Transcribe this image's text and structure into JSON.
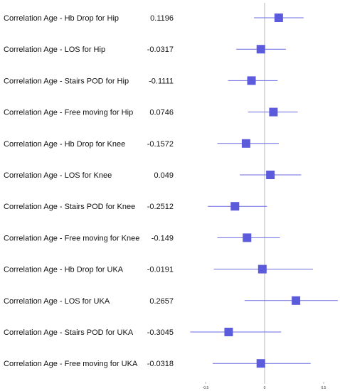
{
  "chart_data": {
    "type": "forest",
    "title": "",
    "xlabel": "",
    "ylabel": "",
    "xlim": [
      -0.65,
      0.62
    ],
    "xticks": [
      "-0.5",
      "0",
      "0.5"
    ],
    "reference_line_x": 0,
    "grid": false,
    "marker_color": "#5b5bdb",
    "ci_color": "#6a6ae0",
    "reference_color": "#cfcfcf",
    "rows": [
      {
        "label": "Correlation Age - Hb Drop for Hip",
        "value_text": "0.1196",
        "estimate": 0.1196,
        "ci": [
          -0.09,
          0.33
        ]
      },
      {
        "label": "Correlation Age - LOS for Hip",
        "value_text": "-0.0317",
        "estimate": -0.0317,
        "ci": [
          -0.24,
          0.18
        ]
      },
      {
        "label": "Correlation Age - Stairs POD for Hip",
        "value_text": "-0.1111",
        "estimate": -0.1111,
        "ci": [
          -0.31,
          0.11
        ]
      },
      {
        "label": "Correlation Age - Free moving for Hip",
        "value_text": "0.0746",
        "estimate": 0.0746,
        "ci": [
          -0.14,
          0.28
        ]
      },
      {
        "label": "Correlation Age - Hb Drop for Knee",
        "value_text": "-0.1572",
        "estimate": -0.1572,
        "ci": [
          -0.4,
          0.12
        ]
      },
      {
        "label": "Correlation Age - LOS for Knee",
        "value_text": "0.049",
        "estimate": 0.049,
        "ci": [
          -0.21,
          0.31
        ]
      },
      {
        "label": "Correlation Age - Stairs POD for Knee",
        "value_text": "-0.2512",
        "estimate": -0.2512,
        "ci": [
          -0.48,
          0.02
        ]
      },
      {
        "label": "Correlation Age - Free moving for Knee",
        "value_text": "-0.149",
        "estimate": -0.149,
        "ci": [
          -0.4,
          0.13
        ]
      },
      {
        "label": "Correlation Age - Hb Drop for UKA",
        "value_text": "-0.0191",
        "estimate": -0.0191,
        "ci": [
          -0.43,
          0.41
        ]
      },
      {
        "label": "Correlation Age - LOS for UKA",
        "value_text": "0.2657",
        "estimate": 0.2657,
        "ci": [
          -0.17,
          0.62
        ]
      },
      {
        "label": "Correlation Age - Stairs POD for UKA",
        "value_text": "-0.3045",
        "estimate": -0.3045,
        "ci": [
          -0.63,
          0.14
        ]
      },
      {
        "label": "Correlation Age - Free moving for UKA",
        "value_text": "-0.0318",
        "estimate": -0.0318,
        "ci": [
          -0.44,
          0.39
        ]
      }
    ]
  }
}
